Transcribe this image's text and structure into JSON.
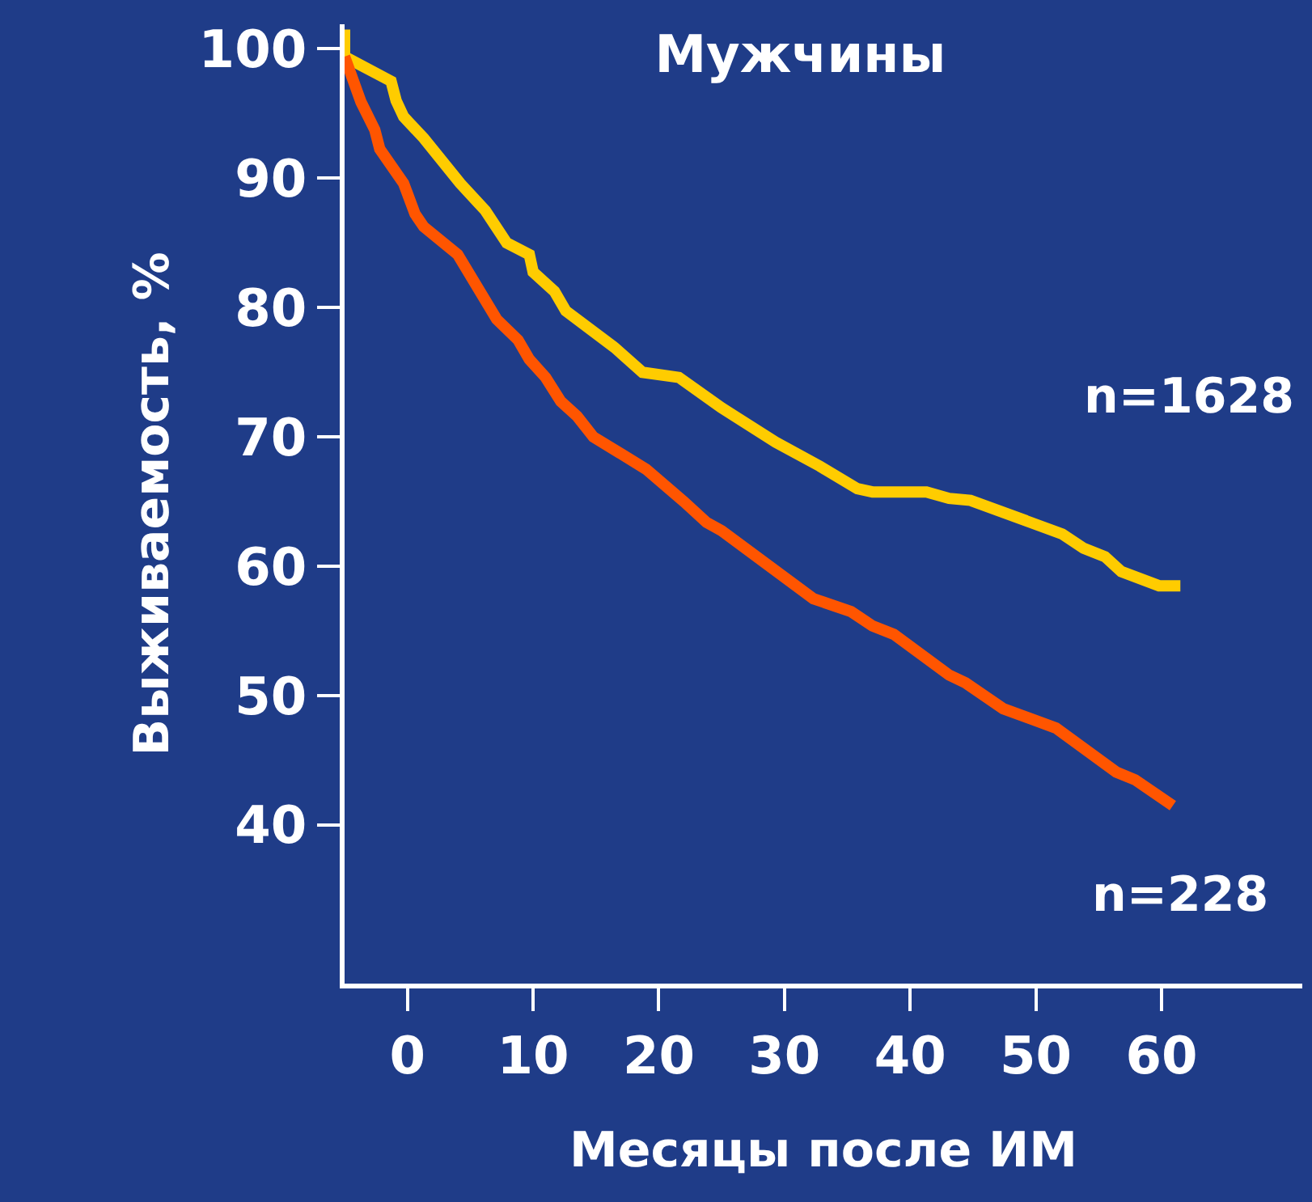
{
  "chart_data": {
    "type": "line",
    "title": "Мужчины",
    "xlabel": "Месяцы после ИМ",
    "ylabel": "Выживаемость, %",
    "xlim": [
      -5,
      71.2
    ],
    "xticks": [
      0,
      10,
      20,
      30,
      40,
      50,
      60
    ],
    "ylim": [
      27.75,
      101.9
    ],
    "yticks": [
      40,
      50,
      60,
      70,
      80,
      90,
      100
    ],
    "grid": false,
    "legend": false,
    "line_style": "solid",
    "marker": "none",
    "series": [
      {
        "name": "n=1628",
        "color": "#ffcc00",
        "x": [
          -5,
          -5,
          -1.3,
          -0.9,
          -0.3,
          1.3,
          4.2,
          6.2,
          7.9,
          9.7,
          10,
          11.7,
          12.6,
          16.5,
          18.7,
          21.6,
          25,
          29.3,
          32.8,
          35.8,
          37,
          41.3,
          43.1,
          44.8,
          52.1,
          53.8,
          55.5,
          56.8,
          59.8,
          61.5
        ],
        "values": [
          101.5,
          99.4,
          97.5,
          96,
          94.75,
          93.1,
          89.6,
          87.5,
          85,
          84.1,
          82.75,
          81.25,
          79.75,
          76.9,
          75,
          74.6,
          72.25,
          69.6,
          67.75,
          66,
          65.75,
          65.75,
          65.25,
          65.1,
          62.5,
          61.4,
          60.75,
          59.6,
          58.5,
          58.5
        ]
      },
      {
        "name": "n=228",
        "color": "#ff5500",
        "x": [
          -5,
          -3.7,
          -2.6,
          -2.2,
          -0.3,
          0.6,
          1.3,
          4,
          7.1,
          8.8,
          9.7,
          11,
          12.2,
          13.5,
          14.8,
          17,
          19,
          22,
          23.8,
          25,
          32.3,
          35.3,
          37,
          38.7,
          43.1,
          44.4,
          47.4,
          51.6,
          56.4,
          57.9,
          60.9
        ],
        "values": [
          99.4,
          95.9,
          93.75,
          92.25,
          89.6,
          87.25,
          86.25,
          84.1,
          79.1,
          77.5,
          76,
          74.6,
          72.75,
          71.6,
          70,
          68.7,
          67.5,
          65,
          63.4,
          62.75,
          57.5,
          56.5,
          55.4,
          54.75,
          51.6,
          51,
          49,
          47.5,
          44.1,
          43.5,
          41.5
        ]
      }
    ]
  }
}
